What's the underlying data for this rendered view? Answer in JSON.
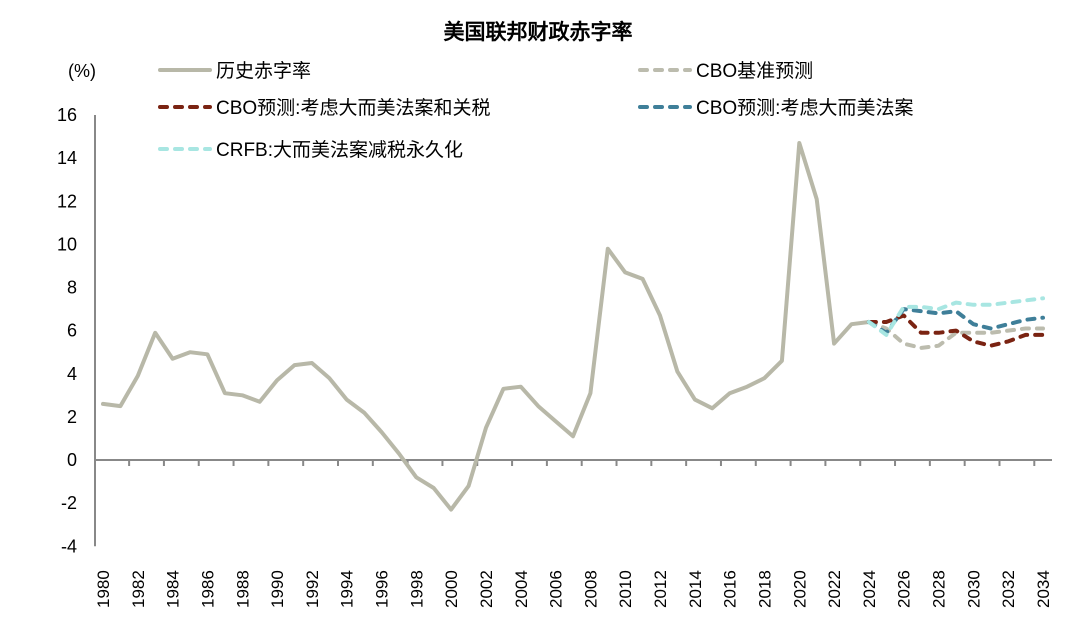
{
  "chart_data": {
    "type": "line",
    "title": "美国联邦财政赤字率",
    "ylabel": "(%)",
    "ylim": [
      -4,
      16
    ],
    "yticks": [
      "-4",
      "-2",
      "0",
      "2",
      "4",
      "6",
      "8",
      "10",
      "12",
      "14",
      "16"
    ],
    "xlim": [
      1980,
      2034
    ],
    "xticks": [
      "1980",
      "1982",
      "1984",
      "1986",
      "1988",
      "1990",
      "1992",
      "1994",
      "1996",
      "1998",
      "2000",
      "2002",
      "2004",
      "2006",
      "2008",
      "2010",
      "2012",
      "2014",
      "2016",
      "2018",
      "2020",
      "2022",
      "2024",
      "2026",
      "2028",
      "2030",
      "2032",
      "2034"
    ],
    "grid": false,
    "legend_placement": "top",
    "series": [
      {
        "name": "历史赤字率",
        "color": "#b8b8a8",
        "style": "solid",
        "start": 1980,
        "values": [
          2.6,
          2.5,
          3.9,
          5.9,
          4.7,
          5.0,
          4.9,
          3.1,
          3.0,
          2.7,
          3.7,
          4.4,
          4.5,
          3.8,
          2.8,
          2.2,
          1.3,
          0.3,
          -0.8,
          -1.3,
          -2.3,
          -1.2,
          1.5,
          3.3,
          3.4,
          2.5,
          1.8,
          1.1,
          3.1,
          9.8,
          8.7,
          8.4,
          6.7,
          4.1,
          2.8,
          2.4,
          3.1,
          3.4,
          3.8,
          4.6,
          14.7,
          12.1,
          5.4,
          6.3,
          6.4
        ]
      },
      {
        "name": "CBO基准预测",
        "color": "#bcbcae",
        "style": "dashed",
        "start": 2024,
        "values": [
          6.4,
          6.1,
          5.4,
          5.2,
          5.3,
          5.9,
          5.9,
          5.9,
          6.0,
          6.1,
          6.1
        ]
      },
      {
        "name": "CBO预测:考虑大而美法案和关税",
        "color": "#7a2312",
        "style": "dashed",
        "start": 2024,
        "values": [
          6.4,
          6.4,
          6.7,
          5.9,
          5.9,
          6.0,
          5.5,
          5.3,
          5.5,
          5.8,
          5.8
        ]
      },
      {
        "name": "CBO预测:考虑大而美法案",
        "color": "#3f7f99",
        "style": "dashed",
        "start": 2024,
        "values": [
          6.4,
          5.9,
          7.0,
          6.9,
          6.8,
          6.9,
          6.3,
          6.1,
          6.3,
          6.5,
          6.6
        ]
      },
      {
        "name": "CRFB:大而美法案减税永久化",
        "color": "#a8e6e2",
        "style": "dashed",
        "start": 2024,
        "values": [
          6.4,
          5.8,
          7.1,
          7.1,
          7.0,
          7.3,
          7.2,
          7.2,
          7.3,
          7.4,
          7.5
        ]
      }
    ]
  }
}
